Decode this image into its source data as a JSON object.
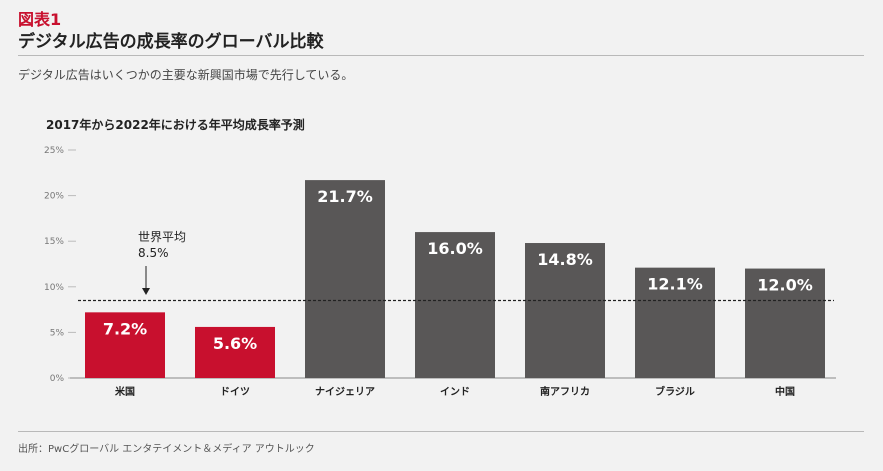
{
  "figure": {
    "label": "図表1",
    "title": "デジタル広告の成長率のグローバル比較",
    "subtitle": "デジタル広告はいくつかの主要な新興国市場で先行している。",
    "source": "出所：PwCグローバル エンタテイメント＆メディア アウトルック"
  },
  "colors": {
    "highlight": "#c8102e",
    "bar": "#595757",
    "brand_red": "#c8102e"
  },
  "chart_data": {
    "type": "bar",
    "title": "2017年から2022年における年平均成長率予測",
    "categories": [
      "米国",
      "ドイツ",
      "ナイジェリア",
      "インド",
      "南アフリカ",
      "ブラジル",
      "中国"
    ],
    "values": [
      7.2,
      5.6,
      21.7,
      16.0,
      14.8,
      12.1,
      12.0
    ],
    "value_labels": [
      "7.2%",
      "5.6%",
      "21.7%",
      "16.0%",
      "14.8%",
      "12.1%",
      "12.0%"
    ],
    "highlighted": [
      true,
      true,
      false,
      false,
      false,
      false,
      false
    ],
    "ylim": [
      0,
      25
    ],
    "yticks": [
      0,
      5,
      10,
      15,
      20,
      25
    ],
    "ytick_labels": [
      "0%",
      "5%",
      "10%",
      "15%",
      "20%",
      "25%"
    ],
    "reference_line": {
      "value": 8.5,
      "label_line1": "世界平均",
      "label_line2": "8.5%",
      "style": "dashed"
    },
    "grid": false,
    "xlabel": "",
    "ylabel": ""
  }
}
